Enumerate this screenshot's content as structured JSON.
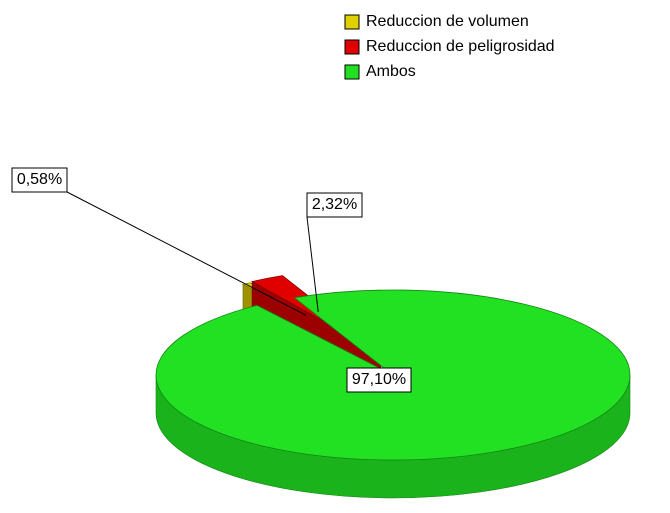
{
  "chart_data": {
    "type": "pie",
    "categories": [
      "Reduccion de volumen",
      "Reduccion de peligrosidad",
      "Ambos"
    ],
    "values": [
      0.58,
      2.32,
      97.1
    ],
    "value_labels": [
      "0,58%",
      "2,32%",
      "97,10%"
    ],
    "colors": [
      "#e0d000",
      "#e00000",
      "#22e022"
    ],
    "legend": "top-right"
  }
}
